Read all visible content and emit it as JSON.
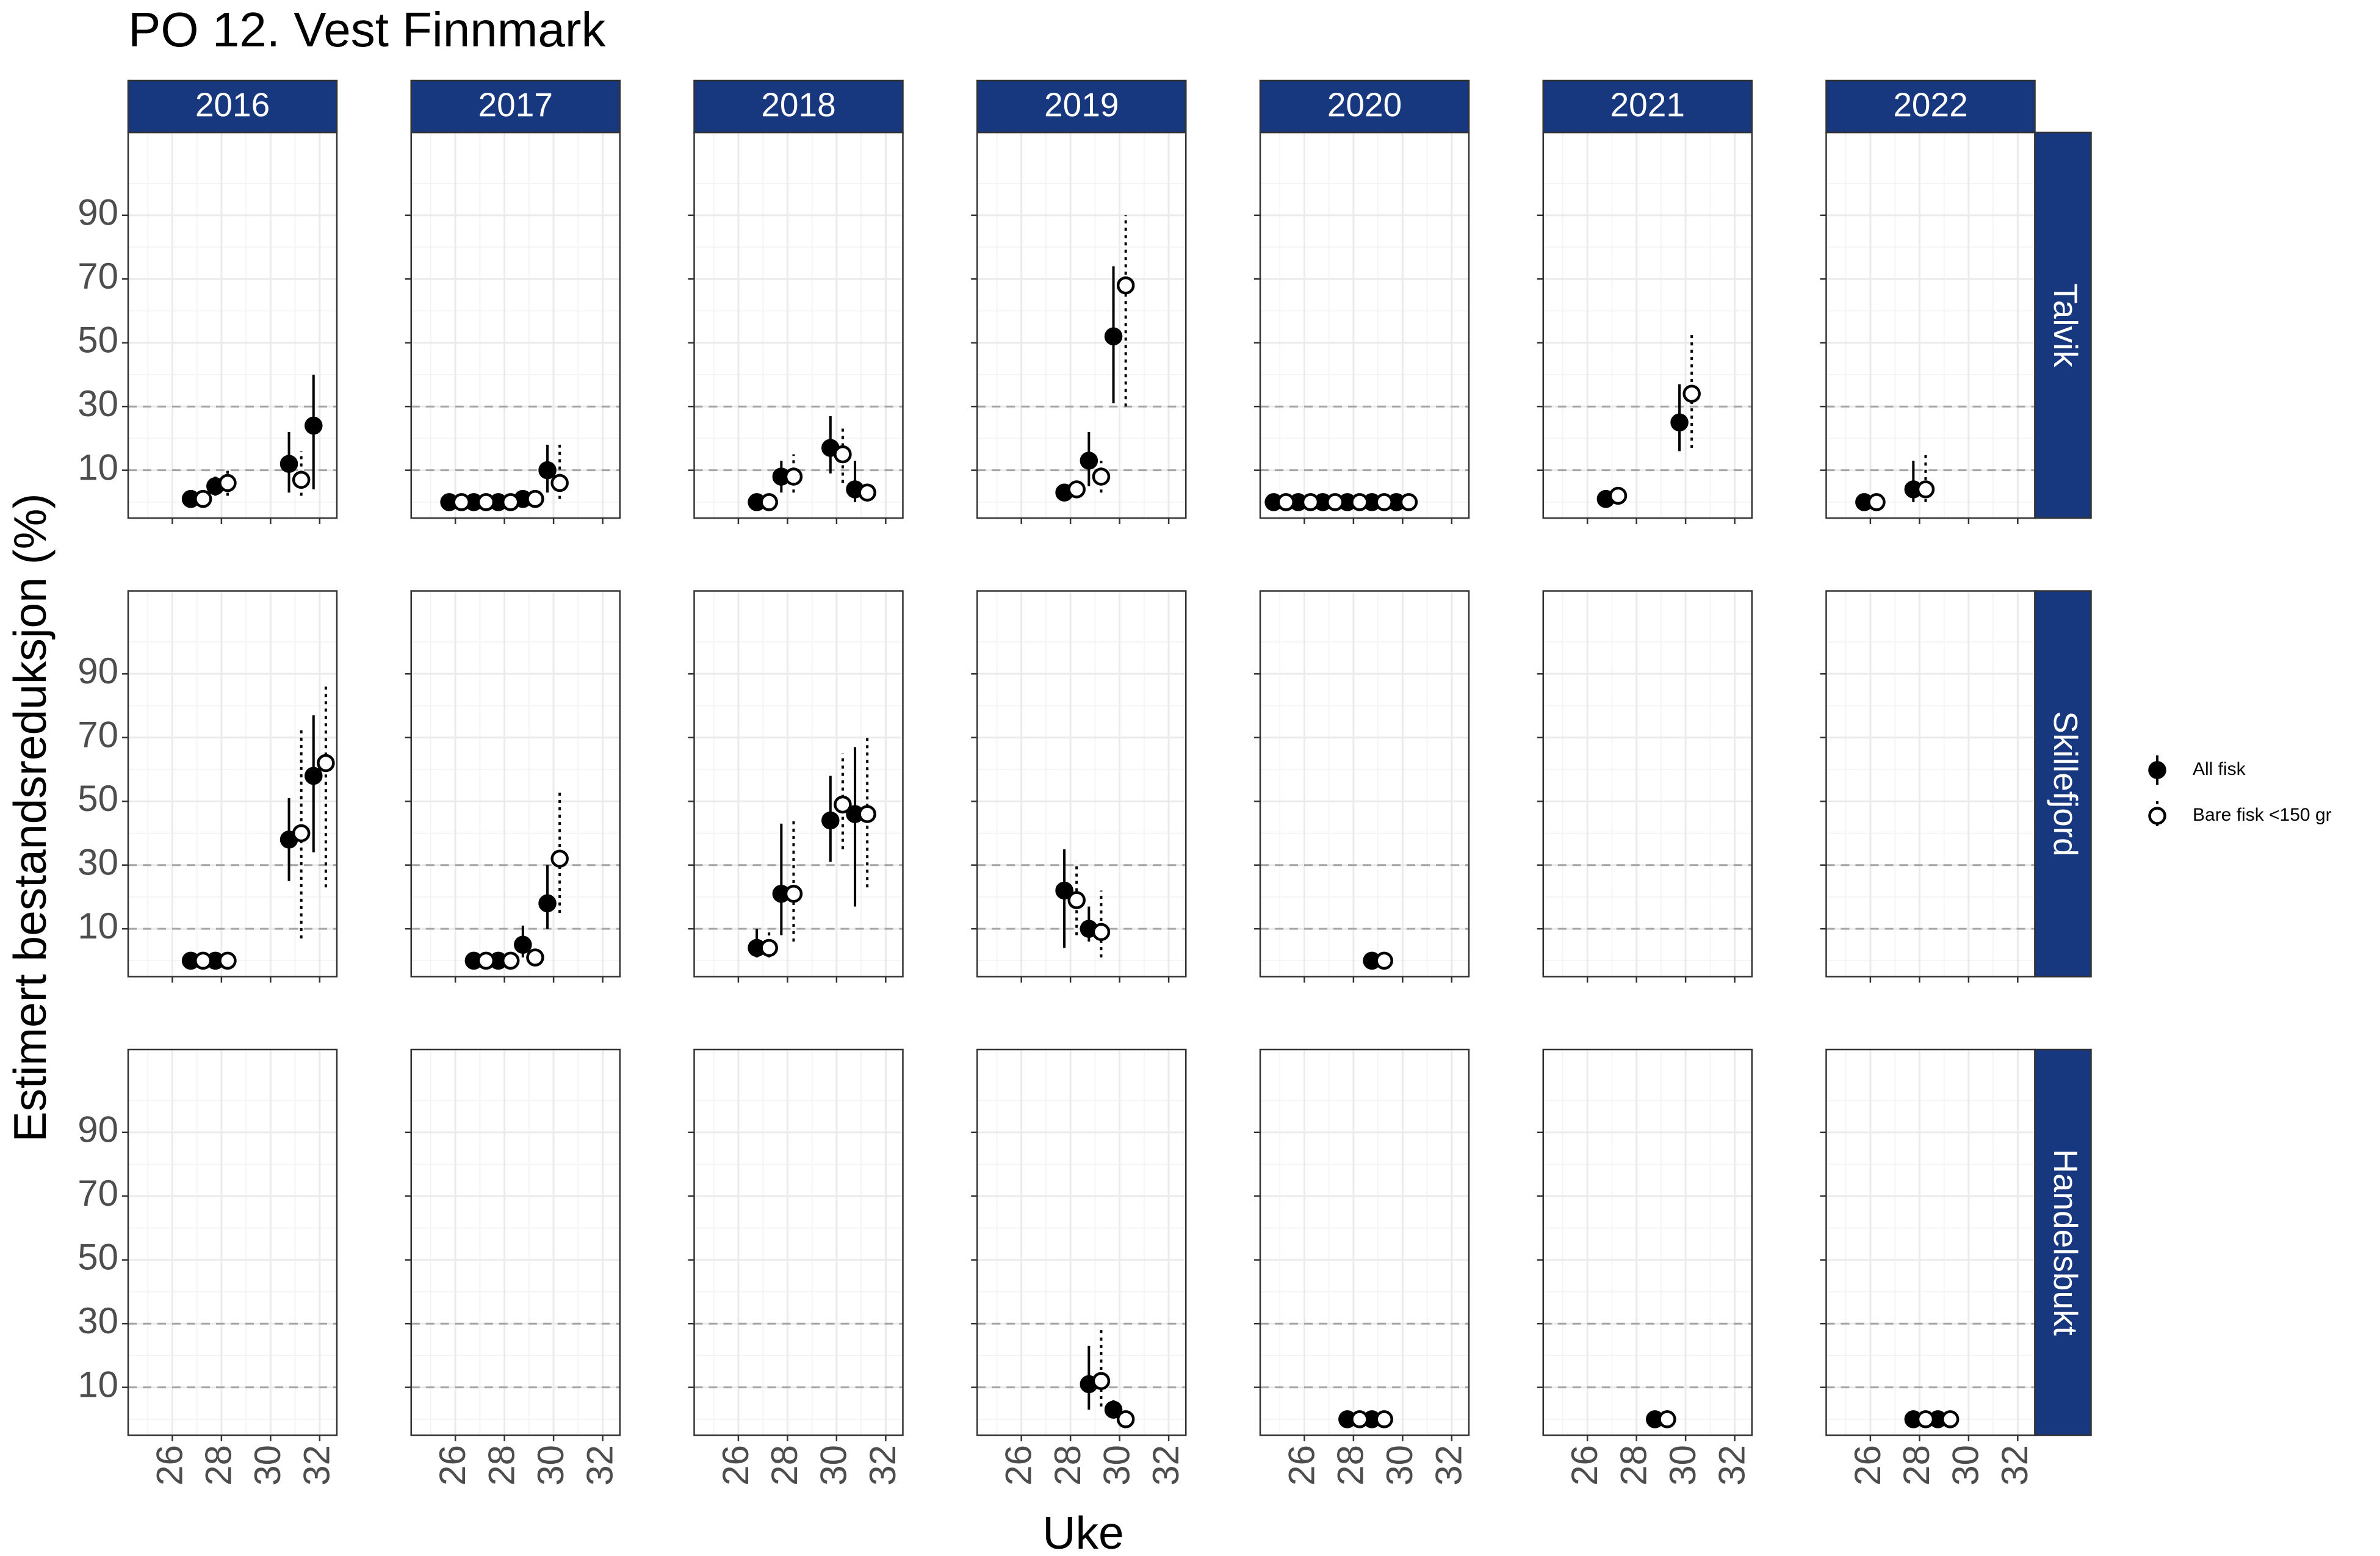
{
  "chart_data": {
    "type": "pointrange",
    "title": "PO 12. Vest Finnmark",
    "xlabel": "Uke",
    "ylabel": "Estimert bestandsreduksjon (%)",
    "columns": [
      "2016",
      "2017",
      "2018",
      "2019",
      "2020",
      "2021",
      "2022"
    ],
    "rows": [
      "Talvik",
      "Skillefjord",
      "Handelsbukt"
    ],
    "strip_color": "#17377f",
    "series": [
      {
        "name": "All fisk",
        "color": "#000000",
        "fill": "#000000",
        "linestyle": "solid"
      },
      {
        "name": "Bare fisk <150 gr",
        "color": "#000000",
        "fill": "#ffffff",
        "linestyle": "dotted"
      }
    ],
    "xlim": [
      24.2,
      32.7
    ],
    "xticks": [
      26,
      28,
      30,
      32
    ],
    "xminor": [
      25,
      27,
      29,
      31
    ],
    "ylim": [
      -5,
      116
    ],
    "yticks": [
      10,
      30,
      50,
      70,
      90
    ],
    "yminor": [
      0,
      20,
      40,
      60,
      80,
      100
    ],
    "hlines": [
      10,
      30
    ],
    "grid": true,
    "legend": "right",
    "panels": [
      [
        {
          "series": [
            {
              "x": [
                27,
                28,
                31,
                32
              ],
              "values": [
                1,
                5,
                12,
                24
              ],
              "lower": [
                0,
                2,
                3,
                4
              ],
              "upper": [
                2,
                8,
                22,
                40
              ]
            },
            {
              "x": [
                27,
                28,
                31
              ],
              "values": [
                1,
                6,
                7
              ],
              "lower": [
                0,
                2,
                2
              ],
              "upper": [
                2,
                10,
                16
              ]
            }
          ]
        },
        {
          "series": [
            {
              "x": [
                26,
                27,
                28,
                29,
                30
              ],
              "values": [
                0,
                0,
                0,
                1,
                10
              ],
              "lower": [
                0,
                0,
                0,
                0,
                3
              ],
              "upper": [
                0,
                0,
                0,
                2,
                18
              ]
            },
            {
              "x": [
                26,
                27,
                28,
                29,
                30
              ],
              "values": [
                0,
                0,
                0,
                1,
                6
              ],
              "lower": [
                0,
                0,
                0,
                0,
                1
              ],
              "upper": [
                0,
                0,
                0,
                2,
                18
              ]
            }
          ]
        },
        {
          "series": [
            {
              "x": [
                27,
                28,
                30,
                31
              ],
              "values": [
                0,
                8,
                17,
                4
              ],
              "lower": [
                0,
                3,
                9,
                0
              ],
              "upper": [
                0,
                13,
                27,
                13
              ]
            },
            {
              "x": [
                27,
                28,
                30,
                31
              ],
              "values": [
                0,
                8,
                15,
                3
              ],
              "lower": [
                0,
                3,
                6,
                1
              ],
              "upper": [
                0,
                15,
                24,
                5
              ]
            }
          ]
        },
        {
          "series": [
            {
              "x": [
                28,
                29,
                30
              ],
              "values": [
                3,
                13,
                52
              ],
              "lower": [
                2,
                5,
                31
              ],
              "upper": [
                4,
                22,
                74
              ]
            },
            {
              "x": [
                28,
                29,
                30
              ],
              "values": [
                4,
                8,
                68
              ],
              "lower": [
                3,
                3,
                30
              ],
              "upper": [
                5,
                13,
                90
              ]
            }
          ]
        },
        {
          "series": [
            {
              "x": [
                25,
                26,
                27,
                28,
                29,
                30
              ],
              "values": [
                0,
                0,
                0,
                0,
                0,
                0
              ],
              "lower": [
                0,
                0,
                0,
                0,
                0,
                0
              ],
              "upper": [
                0,
                0,
                0,
                0,
                0,
                0
              ]
            },
            {
              "x": [
                25,
                26,
                27,
                28,
                29,
                30
              ],
              "values": [
                0,
                0,
                0,
                0,
                0,
                0
              ],
              "lower": [
                0,
                0,
                0,
                0,
                0,
                0
              ],
              "upper": [
                0,
                0,
                0,
                0,
                0,
                0
              ]
            }
          ]
        },
        {
          "series": [
            {
              "x": [
                27,
                30
              ],
              "values": [
                1,
                25
              ],
              "lower": [
                0,
                16
              ],
              "upper": [
                2,
                37
              ]
            },
            {
              "x": [
                27,
                30
              ],
              "values": [
                2,
                34
              ],
              "lower": [
                1,
                17
              ],
              "upper": [
                3,
                53
              ]
            }
          ]
        },
        {
          "series": [
            {
              "x": [
                26,
                28
              ],
              "values": [
                0,
                4
              ],
              "lower": [
                0,
                0
              ],
              "upper": [
                0,
                13
              ]
            },
            {
              "x": [
                26,
                28
              ],
              "values": [
                0,
                4
              ],
              "lower": [
                0,
                0
              ],
              "upper": [
                0,
                16
              ]
            }
          ]
        }
      ],
      [
        {
          "series": [
            {
              "x": [
                27,
                28,
                31,
                32
              ],
              "values": [
                0,
                0,
                38,
                58
              ],
              "lower": [
                0,
                0,
                25,
                34
              ],
              "upper": [
                0,
                0,
                51,
                77
              ]
            },
            {
              "x": [
                27,
                28,
                31,
                32
              ],
              "values": [
                0,
                0,
                40,
                62
              ],
              "lower": [
                0,
                0,
                7,
                23
              ],
              "upper": [
                0,
                0,
                73,
                86
              ]
            }
          ]
        },
        {
          "series": [
            {
              "x": [
                27,
                28,
                29,
                30
              ],
              "values": [
                0,
                0,
                5,
                18
              ],
              "lower": [
                0,
                0,
                1,
                10
              ],
              "upper": [
                0,
                0,
                11,
                30
              ]
            },
            {
              "x": [
                27,
                28,
                29,
                30
              ],
              "values": [
                0,
                0,
                1,
                32
              ],
              "lower": [
                0,
                0,
                0,
                15
              ],
              "upper": [
                0,
                0,
                3,
                54
              ]
            }
          ]
        },
        {
          "series": [
            {
              "x": [
                27,
                28,
                30,
                31
              ],
              "values": [
                4,
                21,
                44,
                46
              ],
              "lower": [
                1,
                8,
                31,
                17
              ],
              "upper": [
                10,
                43,
                58,
                67
              ]
            },
            {
              "x": [
                27,
                28,
                30,
                31
              ],
              "values": [
                4,
                21,
                49,
                46
              ],
              "lower": [
                1,
                6,
                35,
                23
              ],
              "upper": [
                9,
                45,
                65,
                71
              ]
            }
          ]
        },
        {
          "series": [
            {
              "x": [
                28,
                29
              ],
              "values": [
                22,
                10
              ],
              "lower": [
                4,
                6
              ],
              "upper": [
                35,
                17
              ]
            },
            {
              "x": [
                28,
                29
              ],
              "values": [
                19,
                9
              ],
              "lower": [
                8,
                1
              ],
              "upper": [
                31,
                22
              ]
            }
          ]
        },
        {
          "series": [
            {
              "x": [
                29
              ],
              "values": [
                0
              ],
              "lower": [
                0
              ],
              "upper": [
                0
              ]
            },
            {
              "x": [
                29
              ],
              "values": [
                0
              ],
              "lower": [
                0
              ],
              "upper": [
                0
              ]
            }
          ]
        },
        {
          "series": [
            {
              "x": [],
              "values": [],
              "lower": [],
              "upper": []
            },
            {
              "x": [],
              "values": [],
              "lower": [],
              "upper": []
            }
          ]
        },
        {
          "series": [
            {
              "x": [],
              "values": [],
              "lower": [],
              "upper": []
            },
            {
              "x": [],
              "values": [],
              "lower": [],
              "upper": []
            }
          ]
        }
      ],
      [
        {
          "series": [
            {
              "x": [],
              "values": [],
              "lower": [],
              "upper": []
            },
            {
              "x": [],
              "values": [],
              "lower": [],
              "upper": []
            }
          ]
        },
        {
          "series": [
            {
              "x": [],
              "values": [],
              "lower": [],
              "upper": []
            },
            {
              "x": [],
              "values": [],
              "lower": [],
              "upper": []
            }
          ]
        },
        {
          "series": [
            {
              "x": [],
              "values": [],
              "lower": [],
              "upper": []
            },
            {
              "x": [],
              "values": [],
              "lower": [],
              "upper": []
            }
          ]
        },
        {
          "series": [
            {
              "x": [
                29,
                30
              ],
              "values": [
                11,
                3
              ],
              "lower": [
                3,
                1
              ],
              "upper": [
                23,
                6
              ]
            },
            {
              "x": [
                29,
                30
              ],
              "values": [
                12,
                0
              ],
              "lower": [
                4,
                0
              ],
              "upper": [
                28,
                0
              ]
            }
          ]
        },
        {
          "series": [
            {
              "x": [
                28,
                29
              ],
              "values": [
                0,
                0
              ],
              "lower": [
                0,
                0
              ],
              "upper": [
                0,
                0
              ]
            },
            {
              "x": [
                28,
                29
              ],
              "values": [
                0,
                0
              ],
              "lower": [
                0,
                0
              ],
              "upper": [
                0,
                0
              ]
            }
          ]
        },
        {
          "series": [
            {
              "x": [
                29
              ],
              "values": [
                0
              ],
              "lower": [
                0
              ],
              "upper": [
                0
              ]
            },
            {
              "x": [
                29
              ],
              "values": [
                0
              ],
              "lower": [
                0
              ],
              "upper": [
                0
              ]
            }
          ]
        },
        {
          "series": [
            {
              "x": [
                28,
                29
              ],
              "values": [
                0,
                0
              ],
              "lower": [
                0,
                0
              ],
              "upper": [
                0,
                0
              ]
            },
            {
              "x": [
                28,
                29
              ],
              "values": [
                0,
                0
              ],
              "lower": [
                0,
                0
              ],
              "upper": [
                0,
                0
              ]
            }
          ]
        }
      ]
    ]
  }
}
